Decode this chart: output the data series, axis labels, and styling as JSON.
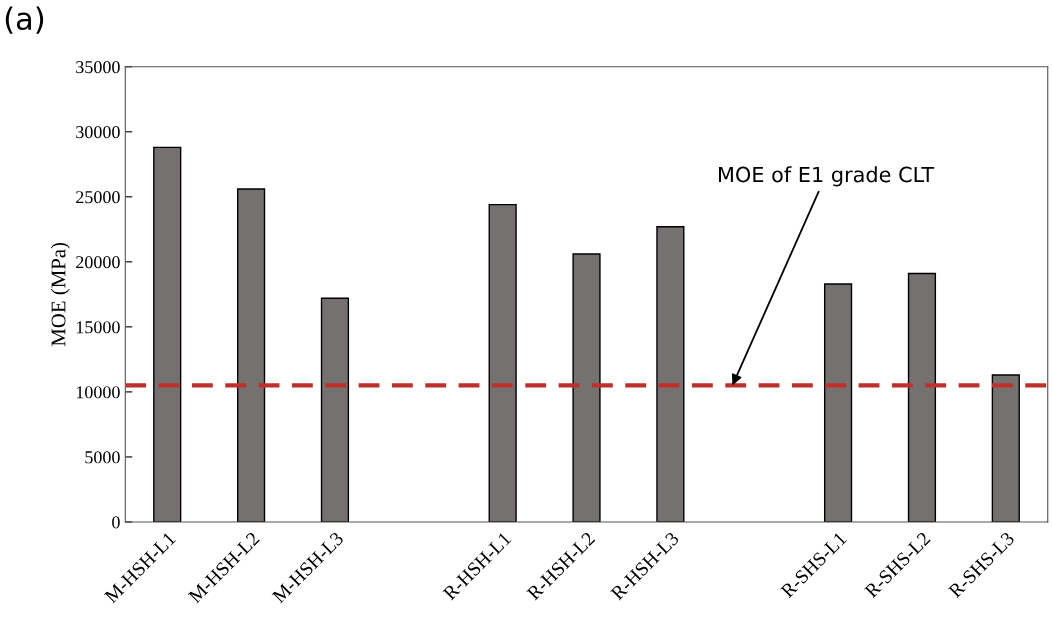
{
  "chart_data": {
    "type": "bar",
    "categories": [
      "M-HSH-L1",
      "M-HSH-L2",
      "M-HSH-L3",
      null,
      "R-HSH-L1",
      "R-HSH-L2",
      "R-HSH-L3",
      null,
      "R-SHS-L1",
      "R-SHS-L2",
      "R-SHS-L3"
    ],
    "values": [
      28800,
      25600,
      17200,
      null,
      24400,
      20600,
      22700,
      null,
      18300,
      19100,
      11300
    ],
    "color": "#767171",
    "ylabel": "MOE (MPa)",
    "ylim": [
      0,
      35000
    ],
    "yticks": [
      0,
      5000,
      10000,
      15000,
      20000,
      25000,
      30000,
      35000
    ],
    "grid": false,
    "legend": false,
    "ref_lines": [
      {
        "axis": "y",
        "value": 10500,
        "label": "MOE of E1 grade CLT",
        "color": "#c0302a",
        "line_style": "dashed"
      }
    ],
    "annotations": [
      "(a)"
    ]
  }
}
